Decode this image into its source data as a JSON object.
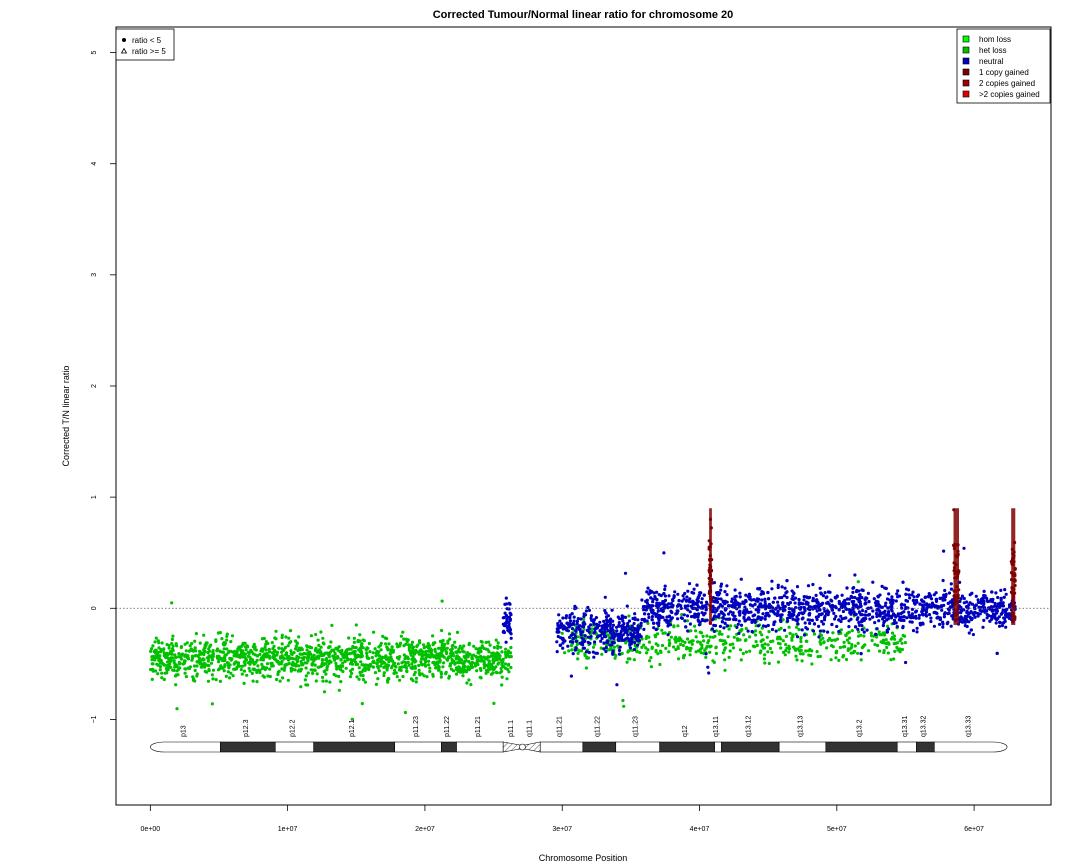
{
  "chart_data": {
    "type": "scatter",
    "title": "Corrected Tumour/Normal linear ratio for chromosome  20",
    "xlabel": "Chromosome Position",
    "ylabel": "Corrected T/N linear ratio",
    "xlim": [
      -2500000,
      65600000
    ],
    "ylim": [
      -1.77,
      5.23
    ],
    "xticks": [
      0,
      10000000,
      20000000,
      30000000,
      40000000,
      50000000,
      60000000
    ],
    "xtick_labels": [
      "0e+00",
      "1e+07",
      "2e+07",
      "3e+07",
      "4e+07",
      "5e+07",
      "6e+07"
    ],
    "yticks": [
      -1,
      0,
      1,
      2,
      3,
      4,
      5
    ],
    "ytick_labels": [
      "−1",
      "0",
      "1",
      "2",
      "3",
      "4",
      "5"
    ],
    "reference_line": {
      "y": 0,
      "style": "dotted"
    },
    "shape_legend": {
      "position": "top-left",
      "items": [
        {
          "label": "ratio < 5",
          "symbol": "filled-circle"
        },
        {
          "label": "ratio >= 5",
          "symbol": "open-triangle"
        }
      ]
    },
    "color_legend": {
      "position": "top-right",
      "items": [
        {
          "label": "hom loss",
          "color": "#00ff00"
        },
        {
          "label": "het loss",
          "color": "#00c000"
        },
        {
          "label": "neutral",
          "color": "#0000bf"
        },
        {
          "label": "1 copy gained",
          "color": "#7f0000"
        },
        {
          "label": "2 copies gained",
          "color": "#a00000"
        },
        {
          "label": ">2 copies gained",
          "color": "#e00000"
        }
      ]
    },
    "segments": [
      {
        "start": 0,
        "end": 26300000,
        "state": "het loss",
        "mean": -0.45
      },
      {
        "start": 25700000,
        "end": 26300000,
        "state": "neutral",
        "mean": -0.1
      },
      {
        "start": 29600000,
        "end": 35800000,
        "state": "neutral",
        "mean": -0.2
      },
      {
        "start": 35800000,
        "end": 63000000,
        "state": "neutral",
        "mean": 0.0
      },
      {
        "start": 30000000,
        "end": 55000000,
        "state": "het loss",
        "mean": -0.3
      },
      {
        "start": 40700000,
        "end": 40900000,
        "state": "1 copy gained",
        "mean": 0.3
      },
      {
        "start": 58500000,
        "end": 58900000,
        "state": "1 copy gained",
        "mean": 0.3
      },
      {
        "start": 62700000,
        "end": 63000000,
        "state": "1 copy gained",
        "mean": 0.3
      }
    ],
    "cytobands": [
      {
        "name": "p13",
        "start": 0,
        "end": 5100000,
        "stain": "white"
      },
      {
        "name": "p12.3",
        "start": 5100000,
        "end": 9100000,
        "stain": "dark"
      },
      {
        "name": "p12.2",
        "start": 9100000,
        "end": 11900000,
        "stain": "white"
      },
      {
        "name": "p12.1",
        "start": 11900000,
        "end": 17800000,
        "stain": "dark"
      },
      {
        "name": "p11.23",
        "start": 17800000,
        "end": 21200000,
        "stain": "white"
      },
      {
        "name": "p11.22",
        "start": 21200000,
        "end": 22300000,
        "stain": "dark"
      },
      {
        "name": "p11.21",
        "start": 22300000,
        "end": 25700000,
        "stain": "white"
      },
      {
        "name": "p11.1",
        "start": 25700000,
        "end": 27100000,
        "stain": "hatched"
      },
      {
        "name": "q11.1",
        "start": 27100000,
        "end": 28400000,
        "stain": "hatched"
      },
      {
        "name": "q11.21",
        "start": 28400000,
        "end": 31500000,
        "stain": "white"
      },
      {
        "name": "q11.22",
        "start": 31500000,
        "end": 33900000,
        "stain": "dark"
      },
      {
        "name": "q11.23",
        "start": 33900000,
        "end": 37100000,
        "stain": "white"
      },
      {
        "name": "q12",
        "start": 37100000,
        "end": 41100000,
        "stain": "dark"
      },
      {
        "name": "q13.11",
        "start": 41100000,
        "end": 41600000,
        "stain": "white"
      },
      {
        "name": "q13.12",
        "start": 41600000,
        "end": 45800000,
        "stain": "dark"
      },
      {
        "name": "q13.13",
        "start": 45800000,
        "end": 49200000,
        "stain": "white"
      },
      {
        "name": "q13.2",
        "start": 49200000,
        "end": 54400000,
        "stain": "dark"
      },
      {
        "name": "q13.31",
        "start": 54400000,
        "end": 55800000,
        "stain": "white"
      },
      {
        "name": "q13.32",
        "start": 55800000,
        "end": 57100000,
        "stain": "dark"
      },
      {
        "name": "q13.33",
        "start": 57100000,
        "end": 62400000,
        "stain": "white"
      }
    ]
  }
}
